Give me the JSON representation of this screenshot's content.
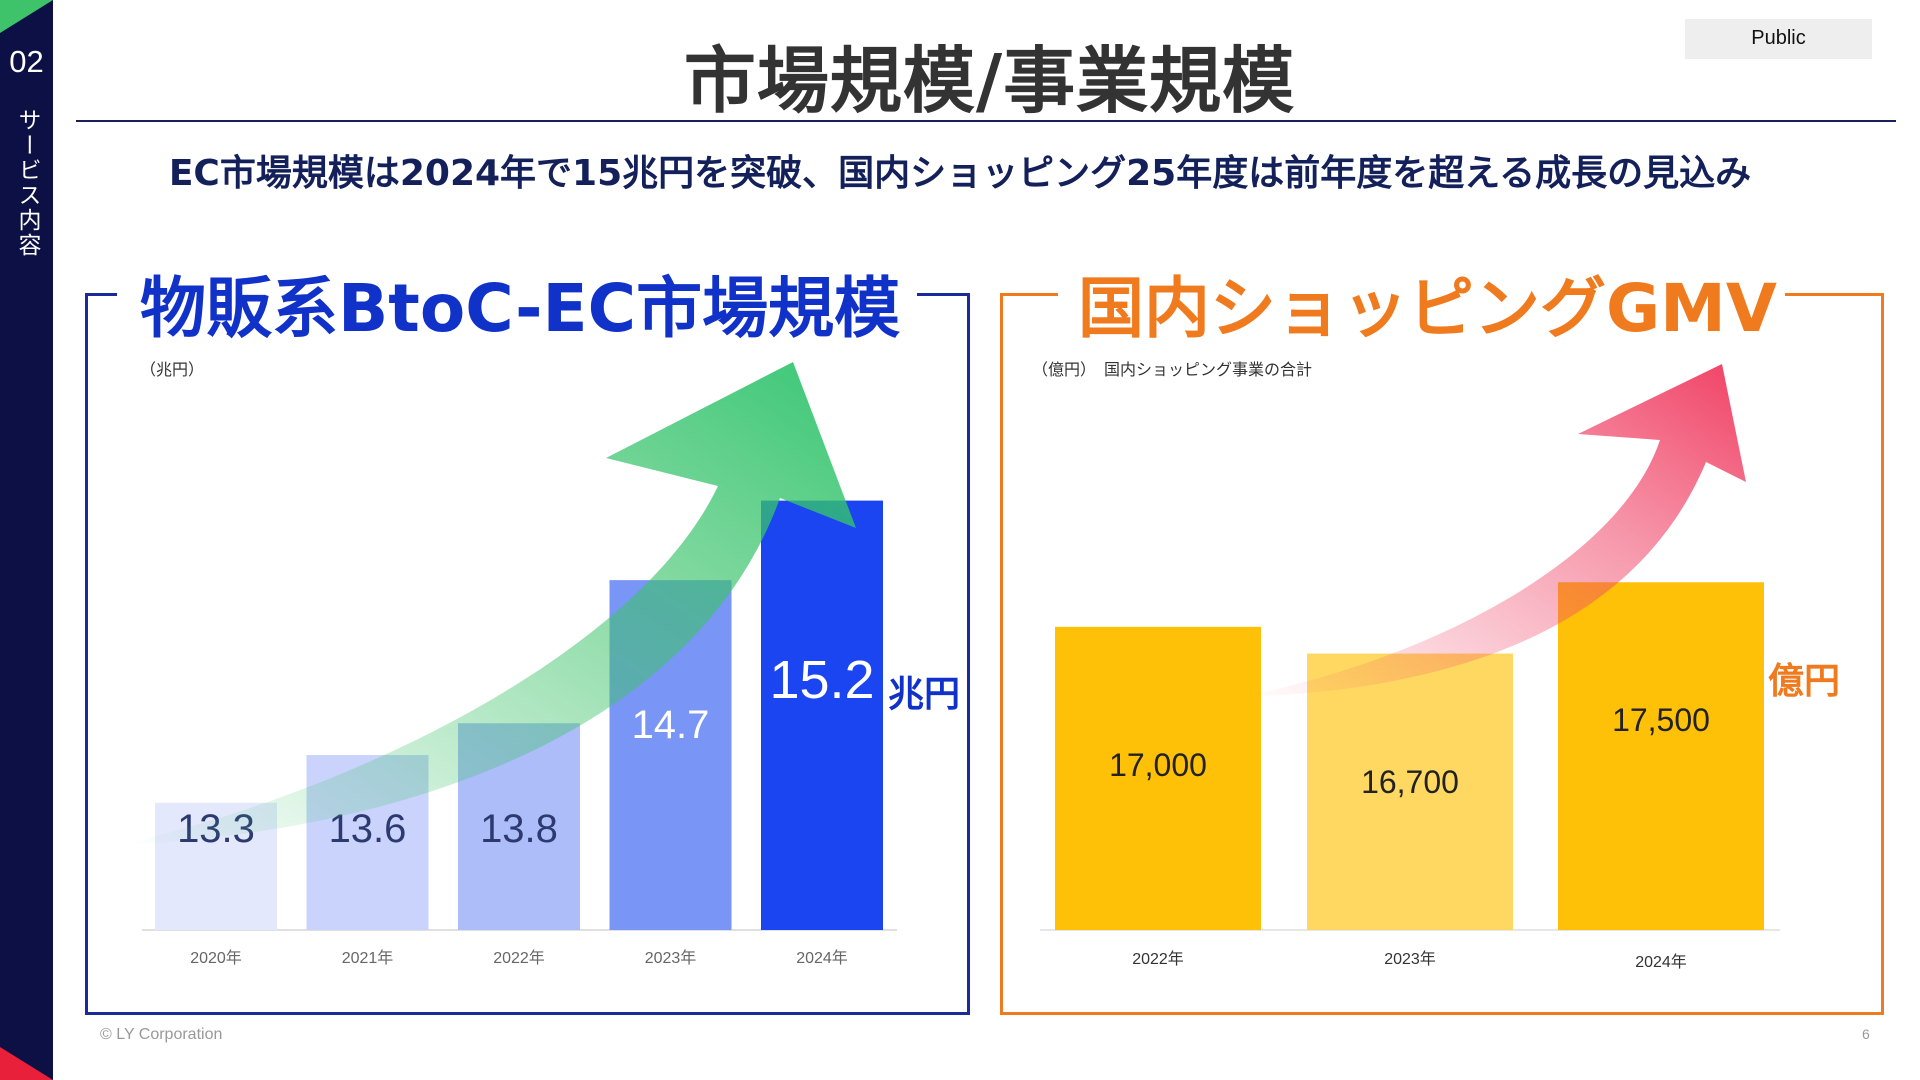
{
  "badge": "Public",
  "section": {
    "number": "02",
    "label": "サービス内容"
  },
  "title": "市場規模/事業規模",
  "subtitle": "EC市場規模は2024年で15兆円を突破、国内ショッピング25年度は前年度を超える成長の見込み",
  "footer": {
    "copyright": "© LY Corporation",
    "page": "6"
  },
  "colors": {
    "navy": "#0c1045",
    "blue": "#1032c8",
    "orange": "#f07a1e",
    "yellow": "#ffc107",
    "green": "#3ec36a",
    "pink": "#f0486a"
  },
  "chart_data": [
    {
      "type": "bar",
      "title": "物販系BtoC-EC市場規模",
      "unit_note": "（兆円）",
      "unit_label": "兆円",
      "categories": [
        "2020年",
        "2021年",
        "2022年",
        "2023年",
        "2024年"
      ],
      "values": [
        13.3,
        13.6,
        13.8,
        14.7,
        15.2
      ],
      "value_labels": [
        "13.3",
        "13.6",
        "13.8",
        "14.7",
        "15.2"
      ],
      "ylim": [
        12.5,
        15.6
      ]
    },
    {
      "type": "bar",
      "title": "国内ショッピングGMV",
      "unit_note": "（億円）　国内ショッピング事業の合計",
      "unit_label": "億円",
      "categories": [
        "2022年",
        "2023年",
        "2024年"
      ],
      "values": [
        17000,
        16700,
        17500
      ],
      "value_labels": [
        "17,000",
        "16,700",
        "17,500"
      ],
      "ylim": [
        13600,
        18400
      ]
    }
  ]
}
